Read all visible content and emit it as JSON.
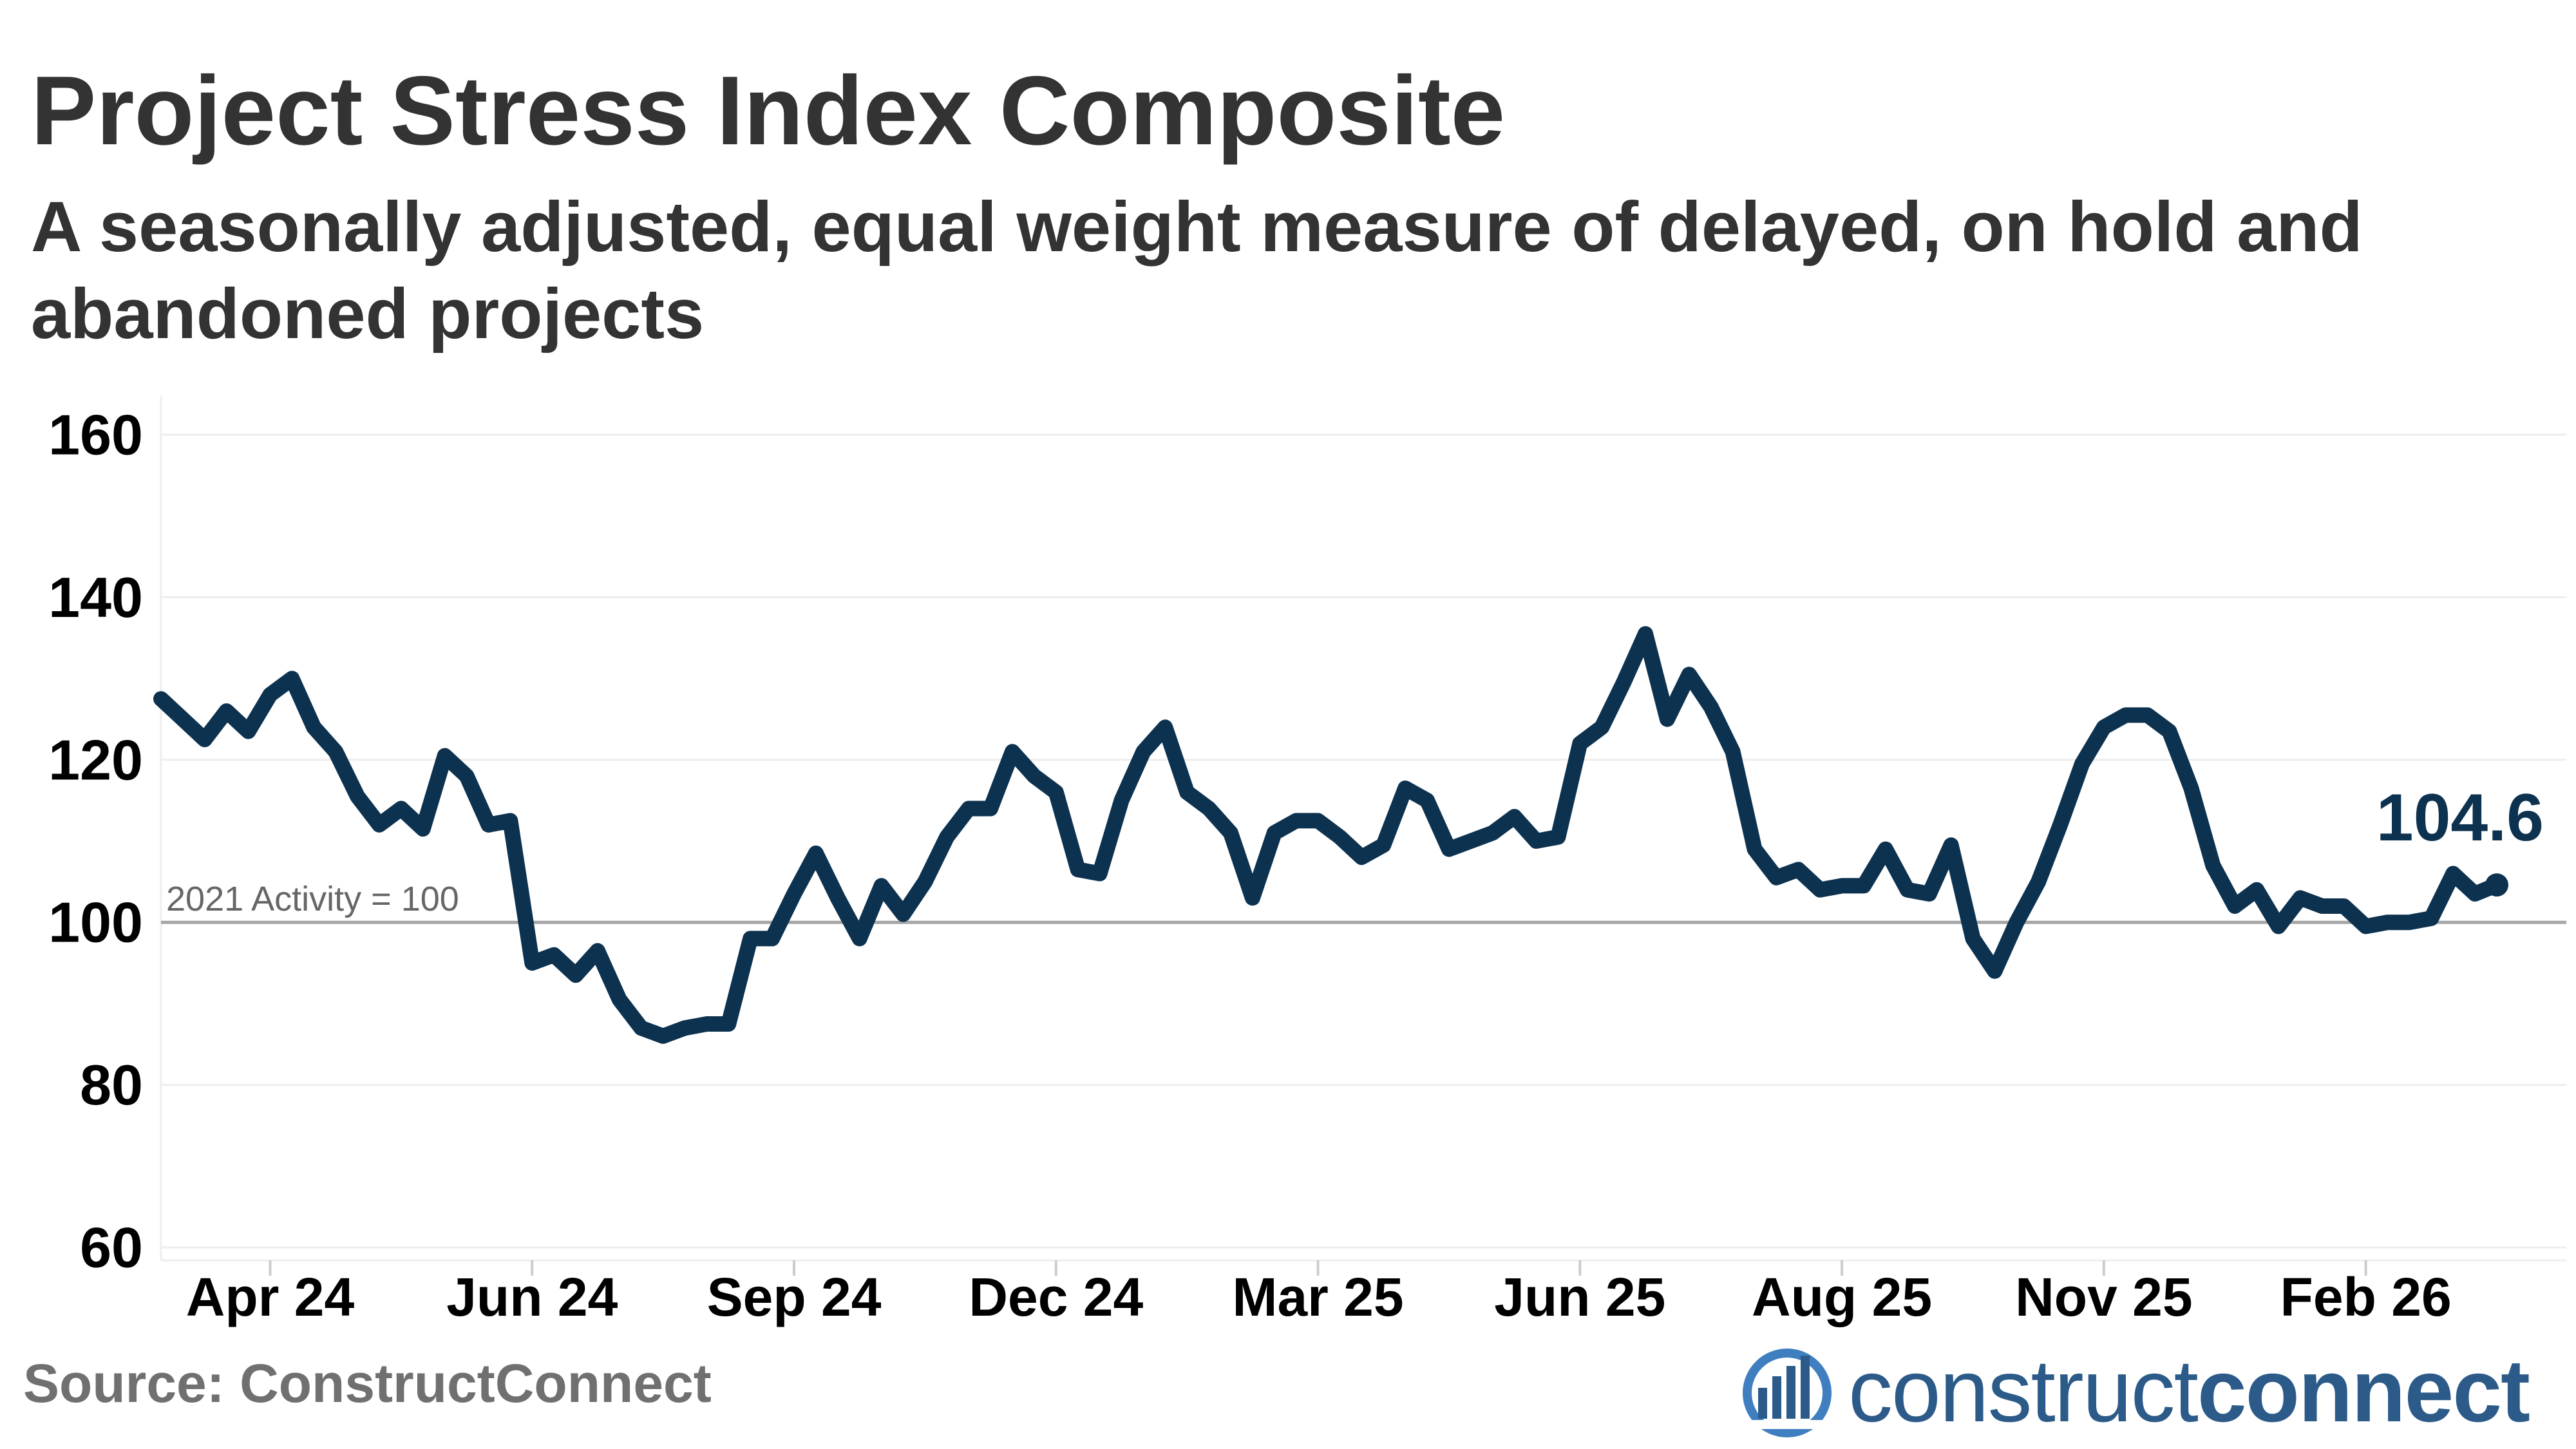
{
  "header": {
    "title": "Project Stress Index Composite",
    "subtitle": "A seasonally adjusted, equal weight measure of delayed, on hold and abandoned projects"
  },
  "footer": {
    "source": "Source: ConstructConnect",
    "logo_light": "construct",
    "logo_bold": "connect"
  },
  "colors": {
    "series": "#0d3250",
    "reference_line": "#a6a6a6",
    "grid": "#eeeeee",
    "text": "#333333",
    "source_text": "#707070",
    "logo": "#2c5b8a"
  },
  "chart_data": {
    "type": "line",
    "title": "Project Stress Index Composite",
    "subtitle": "A seasonally adjusted, equal weight measure of delayed, on hold and abandoned projects",
    "xlabel": "",
    "ylabel": "",
    "ylim": [
      60,
      160
    ],
    "y_ticks": [
      60,
      80,
      100,
      120,
      140,
      160
    ],
    "x_tick_labels": [
      "Apr 24",
      "Jun 24",
      "Sep 24",
      "Dec 24",
      "Mar 25",
      "Jun 25",
      "Aug 25",
      "Nov 25",
      "Feb 26"
    ],
    "x_tick_index": [
      5,
      17,
      29,
      41,
      53,
      65,
      77,
      89,
      101
    ],
    "grid": true,
    "reference_line": {
      "y": 100,
      "label": "2021 Activity = 100"
    },
    "last_value_label": "104.6",
    "series": [
      {
        "values": [
          127.5,
          125,
          122.5,
          126,
          123.5,
          128,
          130,
          124,
          121,
          115.5,
          112,
          114,
          111.5,
          120.5,
          118,
          112,
          112.5,
          95,
          96,
          93.5,
          96.5,
          90.5,
          87,
          86,
          87,
          87.5,
          87.5,
          98,
          98,
          103.5,
          108.5,
          103,
          98,
          104.5,
          101,
          105,
          110.5,
          114,
          114,
          121,
          118,
          116,
          106.5,
          106,
          115,
          121,
          124,
          116,
          114,
          111,
          103,
          111,
          112.5,
          112.5,
          110.5,
          108,
          109.5,
          116.5,
          115,
          109,
          110,
          111,
          113,
          110,
          110.5,
          122,
          124,
          129.5,
          135.5,
          125,
          130.5,
          126.5,
          121,
          109,
          105.5,
          106.5,
          104,
          104.5,
          104.5,
          109,
          104,
          103.5,
          109.5,
          98,
          94,
          100,
          105,
          112,
          119.5,
          124,
          125.5,
          125.5,
          123.5,
          116.5,
          107,
          102,
          104,
          99.5,
          103,
          102,
          102,
          99.5,
          100,
          100,
          100.5,
          106,
          103.5,
          104.6
        ]
      }
    ]
  }
}
